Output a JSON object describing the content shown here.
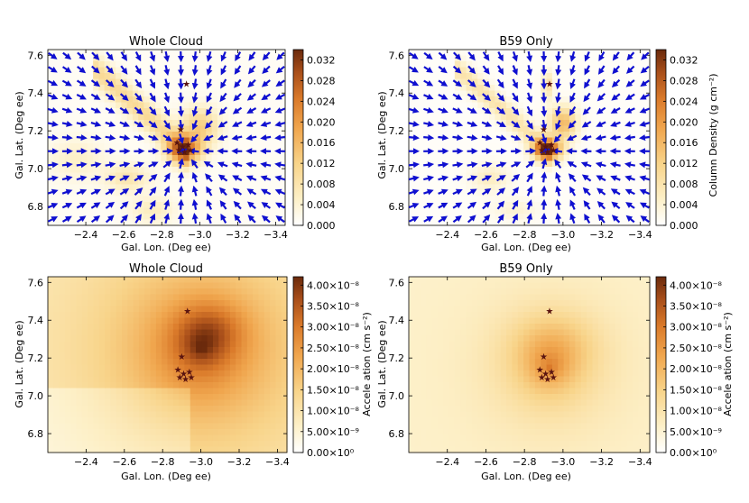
{
  "figure": {
    "colorbar_colors": [
      "#ffffff",
      "#fdf0c8",
      "#f8d48a",
      "#f0a64e",
      "#da7a2a",
      "#a94f1a",
      "#6b2a0c"
    ],
    "arrow_color": "#1010d0",
    "star_color": "#5a1410"
  },
  "chart_data": [
    {
      "type": "heatmap",
      "title": "Whole Cloud",
      "xlabel": "Gal. Lon. (Deg ee)",
      "ylabel": "Gal. Lat. (Deg ee)",
      "xlim": [
        -2.2,
        -3.45
      ],
      "ylim": [
        6.7,
        7.63
      ],
      "x_ticks": [
        "−2.4",
        "−2.6",
        "−2.8",
        "−3.0",
        "−3.2",
        "−3.4"
      ],
      "y_ticks": [
        "6.8",
        "7.0",
        "7.2",
        "7.4",
        "7.6"
      ],
      "overlay": "vector field (arrows) converging toward B59 at (-2.92, 7.10)",
      "stars": [
        [
          -2.93,
          7.45
        ],
        [
          -2.9,
          7.21
        ],
        [
          -2.88,
          7.14
        ],
        [
          -2.91,
          7.12
        ],
        [
          -2.94,
          7.13
        ],
        [
          -2.92,
          7.09
        ],
        [
          -2.89,
          7.1
        ],
        [
          -2.95,
          7.1
        ]
      ]
    },
    {
      "type": "heatmap",
      "title": "B59 Only",
      "xlabel": "Gal. Lon. (Deg ee)",
      "ylabel": "Gal. Lat. (Deg ee)",
      "xlim": [
        -2.2,
        -3.45
      ],
      "ylim": [
        6.7,
        7.63
      ],
      "x_ticks": [
        "−2.4",
        "−2.6",
        "−2.8",
        "−3.0",
        "−3.2",
        "−3.4"
      ],
      "y_ticks": [
        "6.8",
        "7.0",
        "7.2",
        "7.4",
        "7.6"
      ],
      "overlay": "vector field (arrows) converging toward B59 at (-2.92, 7.10)",
      "stars": [
        [
          -2.93,
          7.45
        ],
        [
          -2.9,
          7.21
        ],
        [
          -2.88,
          7.14
        ],
        [
          -2.91,
          7.12
        ],
        [
          -2.94,
          7.13
        ],
        [
          -2.92,
          7.09
        ],
        [
          -2.89,
          7.1
        ],
        [
          -2.95,
          7.1
        ]
      ],
      "colorbar": {
        "label": "Column Density (g cm⁻²)",
        "range": [
          0,
          0.034
        ],
        "ticks": [
          "0.032",
          "0.028",
          "0.024",
          "0.020",
          "0.016",
          "0.012",
          "0.008",
          "0.004",
          "0.000"
        ]
      }
    },
    {
      "type": "heatmap",
      "title": "Whole Cloud",
      "xlabel": "Gal. Lon. (Deg ee)",
      "ylabel": "Gal. Lat. (Deg ee)",
      "xlim": [
        -2.2,
        -3.45
      ],
      "ylim": [
        6.7,
        7.63
      ],
      "x_ticks": [
        "−2.4",
        "−2.6",
        "−2.8",
        "−3.0",
        "−3.2",
        "−3.4"
      ],
      "y_ticks": [
        "6.8",
        "7.0",
        "7.2",
        "7.4",
        "7.6"
      ],
      "stars": [
        [
          -2.93,
          7.45
        ],
        [
          -2.9,
          7.21
        ],
        [
          -2.88,
          7.14
        ],
        [
          -2.91,
          7.12
        ],
        [
          -2.94,
          7.13
        ],
        [
          -2.92,
          7.09
        ],
        [
          -2.89,
          7.1
        ],
        [
          -2.95,
          7.1
        ]
      ],
      "colorbar": {
        "label": "Accele ation (cm s⁻²)",
        "range": [
          0,
          4.2e-08
        ],
        "ticks": [
          "4.00×10⁻⁸",
          "3.50×10⁻⁸",
          "3.00×10⁻⁸",
          "2.50×10⁻⁸",
          "2.00×10⁻⁸",
          "1.50×10⁻⁸",
          "1.00×10⁻⁸",
          "5.00×10⁻⁹",
          "0.00×10⁰"
        ]
      }
    },
    {
      "type": "heatmap",
      "title": "B59 Only",
      "xlabel": "Gal. Lon. (Deg ee)",
      "ylabel": "Gal. Lat. (Deg ee)",
      "xlim": [
        -2.2,
        -3.45
      ],
      "ylim": [
        6.7,
        7.63
      ],
      "x_ticks": [
        "−2.4",
        "−2.6",
        "−2.8",
        "−3.0",
        "−3.2",
        "−3.4"
      ],
      "y_ticks": [
        "6.8",
        "7.0",
        "7.2",
        "7.4",
        "7.6"
      ],
      "stars": [
        [
          -2.93,
          7.45
        ],
        [
          -2.9,
          7.21
        ],
        [
          -2.88,
          7.14
        ],
        [
          -2.91,
          7.12
        ],
        [
          -2.94,
          7.13
        ],
        [
          -2.92,
          7.09
        ],
        [
          -2.89,
          7.1
        ],
        [
          -2.95,
          7.1
        ]
      ],
      "colorbar": {
        "label": "Accele ation (cm s⁻²)",
        "range": [
          0,
          4.2e-08
        ],
        "ticks": [
          "4.00×10⁻⁸",
          "3.50×10⁻⁸",
          "3.00×10⁻⁸",
          "2.50×10⁻⁸",
          "2.00×10⁻⁸",
          "1.50×10⁻⁸",
          "1.00×10⁻⁸",
          "5.00×10⁻⁹",
          "0.00×10⁰"
        ]
      }
    }
  ]
}
